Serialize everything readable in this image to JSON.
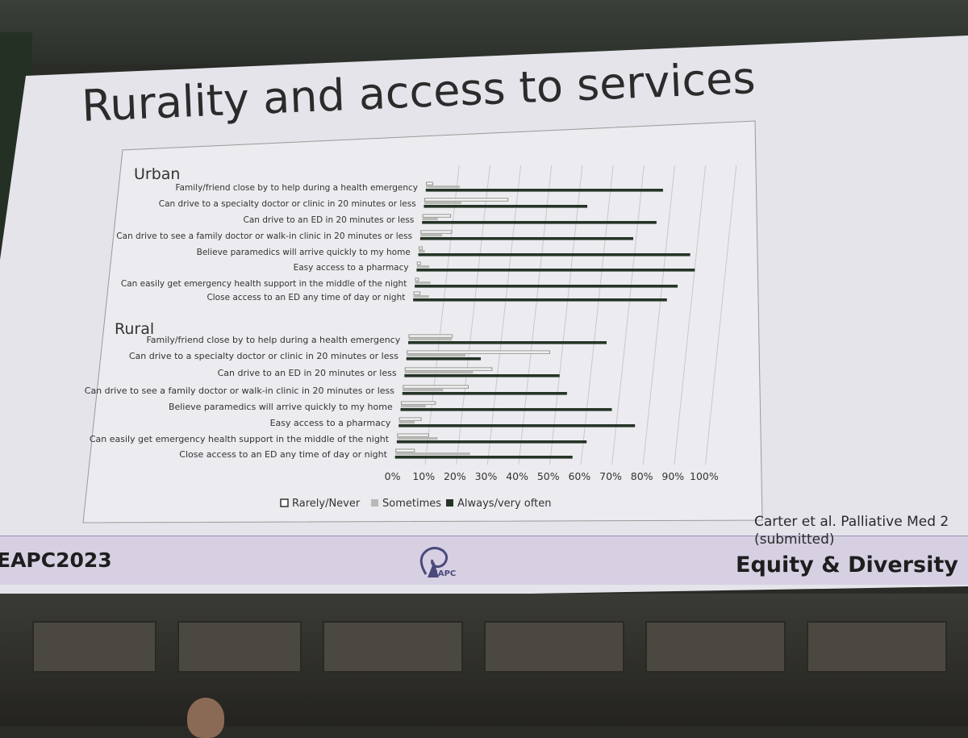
{
  "slide": {
    "title": "Rurality and access to services",
    "hashtag": "EAPC2023",
    "logo_text": "EAPC",
    "citation_line1": "Carter et al. Palliative Med 2",
    "citation_line2": "(submitted)",
    "tagline": "Equity & Diversity"
  },
  "colors": {
    "screen_bg": "#e4e4ea",
    "rarely": "#8a8f88",
    "sometimes": "#b9bab6",
    "always": "#253426",
    "footer_band": "#d7d0e3"
  },
  "chart_data": {
    "type": "bar",
    "orientation": "horizontal",
    "stacked": false,
    "title": "",
    "xlabel": "",
    "ylabel": "",
    "xlim": [
      0,
      100
    ],
    "x_ticks": [
      "0%",
      "10%",
      "20%",
      "30%",
      "40%",
      "50%",
      "60%",
      "70%",
      "80%",
      "90%",
      "100%"
    ],
    "gridlines": true,
    "legend_position": "bottom",
    "legend": [
      "Rarely/Never",
      "Sometimes",
      "Always/very often"
    ],
    "groups": [
      {
        "name": "Urban",
        "categories": [
          "Family/friend close by to help during a health emergency",
          "Can drive to a specialty doctor or clinic in 20 minutes or less",
          "Can drive to an ED in 20 minutes or less",
          "Can drive to see a family doctor or walk-in clinic in 20 minutes or less",
          "Believe paramedics will arrive quickly to my home",
          "Easy access to a pharmacy",
          "Can easily get emergency health support in the middle of the night",
          "Close access to an ED any time of day or night"
        ],
        "series": [
          {
            "name": "Rarely/Never",
            "values": [
              2,
              27,
              9,
              10,
              1,
              1,
              1,
              2
            ]
          },
          {
            "name": "Sometimes",
            "values": [
              11,
              12,
              5,
              7,
              2,
              4,
              5,
              5
            ]
          },
          {
            "name": "Always/very often",
            "values": [
              77,
              53,
              76,
              69,
              88,
              90,
              85,
              82
            ]
          }
        ]
      },
      {
        "name": "Rural",
        "categories": [
          "Family/friend close by to help during a health emergency",
          "Can drive to a specialty doctor or clinic in 20 minutes or less",
          "Can drive to an ED in 20 minutes or less",
          "Can drive to see a family doctor or walk-in clinic in 20 minutes or less",
          "Believe paramedics will arrive quickly to my home",
          "Easy access to a pharmacy",
          "Can easily get emergency health support in the middle of the night",
          "Close access to an ED any time of day or night"
        ],
        "series": [
          {
            "name": "Rarely/Never",
            "values": [
              14,
              46,
              28,
              21,
              11,
              7,
              10,
              6
            ]
          },
          {
            "name": "Sometimes",
            "values": [
              14,
              19,
              22,
              13,
              8,
              5,
              13,
              24
            ]
          },
          {
            "name": "Always/very often",
            "values": [
              64,
              24,
              50,
              53,
              68,
              76,
              61,
              57
            ]
          }
        ]
      }
    ]
  }
}
